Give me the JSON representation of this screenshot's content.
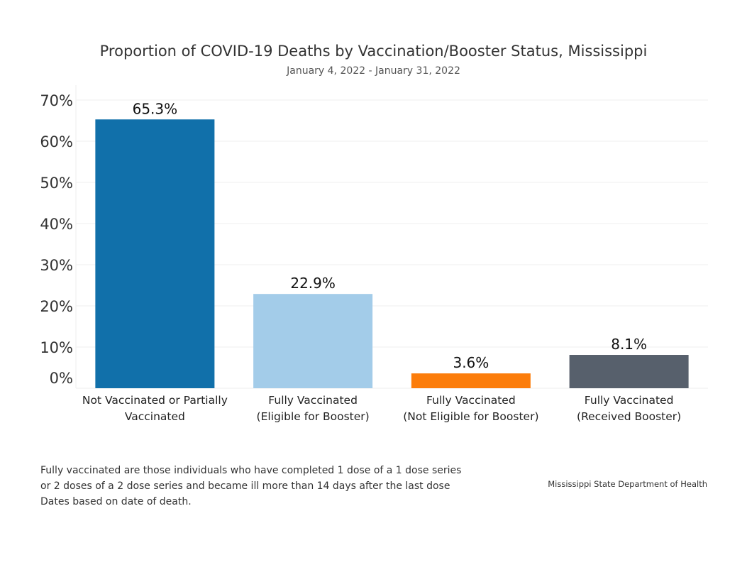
{
  "chart_data": {
    "type": "bar",
    "title": "Proportion of COVID-19 Deaths by Vaccination/Booster Status, Mississippi",
    "subtitle": "January 4, 2022 - January 31, 2022",
    "categories": [
      [
        "Not Vaccinated or Partially",
        "Vaccinated"
      ],
      [
        "Fully Vaccinated",
        "(Eligible for Booster)"
      ],
      [
        "Fully Vaccinated",
        "(Not Eligible for Booster)"
      ],
      [
        "Fully Vaccinated",
        "(Received Booster)"
      ]
    ],
    "values": [
      65.3,
      22.9,
      3.6,
      8.1
    ],
    "data_labels": [
      "65.3%",
      "22.9%",
      "3.6%",
      "8.1%"
    ],
    "colors": [
      "#1170aa",
      "#a3cce9",
      "#fc7d0b",
      "#57606c"
    ],
    "yticks": [
      "0%",
      "10%",
      "20%",
      "30%",
      "40%",
      "50%",
      "60%",
      "70%"
    ],
    "ylim": [
      0,
      70
    ],
    "grid": true,
    "xlabel": "",
    "ylabel": ""
  },
  "footnotes": [
    "Fully vaccinated are those individuals who have completed 1 dose of a 1 dose series",
    "or 2 doses of a 2 dose series and became ill more than 14 days after the last dose",
    "Dates based on date of death."
  ],
  "source": "Mississippi State Department of Health"
}
